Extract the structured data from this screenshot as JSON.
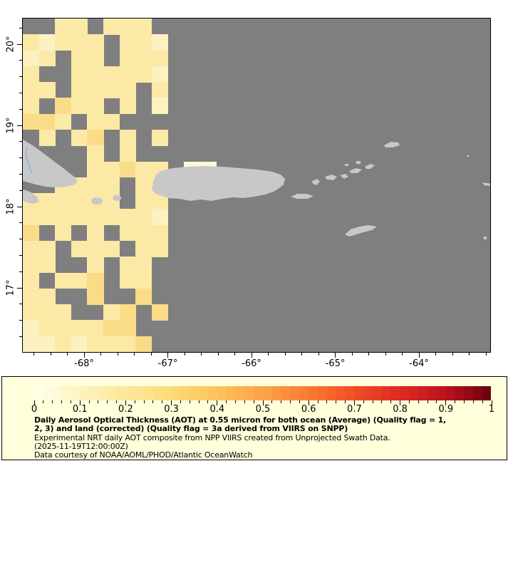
{
  "map": {
    "colors": {
      "ocean_nodata": "#7F7F7F",
      "land": "#C8C8C8",
      "river": "#8FB2DC",
      "frame": "#000000"
    },
    "lat_axis": {
      "ticks": [
        {
          "value": 20,
          "label": "20°"
        },
        {
          "value": 19,
          "label": "19°"
        },
        {
          "value": 18,
          "label": "18°"
        },
        {
          "value": 17,
          "label": "17°"
        }
      ],
      "minor_step": 0.2
    },
    "lon_axis": {
      "ticks": [
        {
          "value": -68,
          "label": "-68°"
        },
        {
          "value": -67,
          "label": "-67°"
        },
        {
          "value": -66,
          "label": "-66°"
        },
        {
          "value": -65,
          "label": "-65°"
        },
        {
          "value": -64,
          "label": "-64°"
        }
      ],
      "minor_step": 0.2
    },
    "aot_palette": {
      "a": "#FEF8DC",
      "b": "#FDF1C2",
      "c": "#FCE9A6",
      "d": "#FADC88",
      "e": "#F6C35C"
    },
    "aot_grid": [
      "..cc.ccc.....................",
      "cbccc.ccb....................",
      "bc.cc.ccc....................",
      "c..cccccb....................",
      "cc.cccc.c....................",
      "c.dcc.c.b....................",
      "ddc.cc.......................",
      ".c.cd.c.c....................",
      "....c.c......................",
      "....ccdcc.aa.................",
      "..cccc.cc....................",
      "cccccc.cc....................",
      "ccccccccb....................",
      "d.c.c.ccc....................",
      "cc.ccc.cc....................",
      "cc..c.cc.....................",
      "c.ccd.cc.....................",
      "cc..d..d.....................",
      "ccc..cd.d....................",
      "bccccdd......................",
      "bbcbcccd....................."
    ]
  },
  "legend": {
    "background": "#FFFFDC",
    "colorbar_anchors": [
      "#FFFFEE",
      "#FEF3C0",
      "#FEE79B",
      "#FEDA79",
      "#FEC35B",
      "#FDA347",
      "#FB7B32",
      "#F14E26",
      "#DE2A23",
      "#BD131F",
      "#67000D"
    ],
    "tick_labels": [
      "0",
      "0.1",
      "0.2",
      "0.3",
      "0.4",
      "0.5",
      "0.6",
      "0.7",
      "0.8",
      "0.9",
      "1"
    ],
    "title_line1": "Daily Aerosol Optical Thickness (AOT) at 0.55 micron for both ocean (Average) (Quality flag = 1,",
    "title_line2": "2, 3) and land (corrected) (Quality flag = 3a derived from VIIRS on SNPP)",
    "subtitle": "Experimental NRT daily AOT composite from NPP VIIRS created from Unprojected Swath Data.",
    "timestamp": "(2025-11-19T12:00:00Z)",
    "credit": "Data courtesy of NOAA/AOML/PHOD/Atlantic OceanWatch"
  },
  "chart_data": {
    "type": "heatmap",
    "variable": "Daily Aerosol Optical Thickness (AOT) at 0.55 micron",
    "colorbar_range": [
      0,
      1
    ],
    "colorbar_tick_labels": [
      "0",
      "0.1",
      "0.2",
      "0.3",
      "0.4",
      "0.5",
      "0.6",
      "0.7",
      "0.8",
      "0.9",
      "1"
    ],
    "lon_range": [
      -68.78,
      -63.14
    ],
    "lat_range": [
      16.19,
      20.32
    ],
    "lon_ticks": [
      -68,
      -67,
      -66,
      -65,
      -64
    ],
    "lat_ticks": [
      20,
      19,
      18,
      17
    ],
    "note": "AOT values ~0.05-0.35 (pale yellow cells) west of -67°; no-data gray elsewhere",
    "date": "2025-11-19T12:00:00Z"
  }
}
